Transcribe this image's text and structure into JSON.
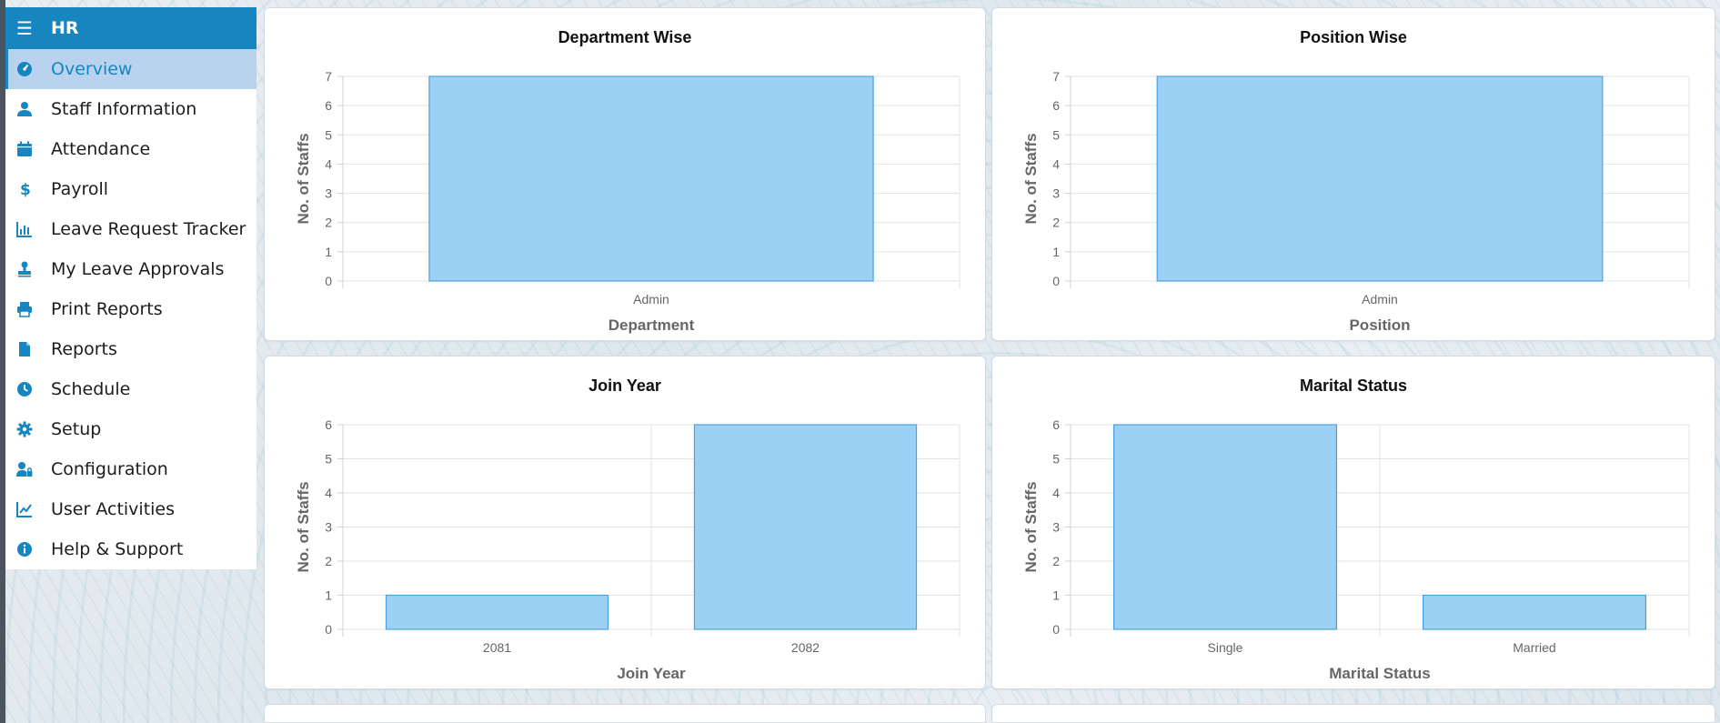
{
  "sidebar": {
    "header": "HR",
    "items": [
      {
        "label": "Overview",
        "icon": "dashboard-icon",
        "active": true
      },
      {
        "label": "Staff Information",
        "icon": "user-icon"
      },
      {
        "label": "Attendance",
        "icon": "calendar-icon"
      },
      {
        "label": "Payroll",
        "icon": "dollar-icon"
      },
      {
        "label": "Leave Request Tracker",
        "icon": "bar-chart-icon"
      },
      {
        "label": "My Leave Approvals",
        "icon": "stamp-icon"
      },
      {
        "label": "Print Reports",
        "icon": "printer-icon"
      },
      {
        "label": "Reports",
        "icon": "file-icon"
      },
      {
        "label": "Schedule",
        "icon": "clock-icon"
      },
      {
        "label": "Setup",
        "icon": "gear-icon"
      },
      {
        "label": "Configuration",
        "icon": "user-lock-icon"
      },
      {
        "label": "User Activities",
        "icon": "line-chart-icon"
      },
      {
        "label": "Help & Support",
        "icon": "info-icon"
      }
    ]
  },
  "colors": {
    "accent": "#1786c0",
    "active_bg": "#b9d3ee",
    "bar_fill": "#9dd0f5",
    "bar_stroke": "#4aa3e0"
  },
  "chart_data": [
    {
      "type": "bar",
      "title": "Department Wise",
      "xlabel": "Department",
      "ylabel": "No. of Staffs",
      "categories": [
        "Admin"
      ],
      "values": [
        7
      ],
      "ylim": [
        0,
        7
      ],
      "yticks": [
        "0",
        "1",
        "2",
        "3",
        "4",
        "5",
        "6",
        "7"
      ]
    },
    {
      "type": "bar",
      "title": "Position Wise",
      "xlabel": "Position",
      "ylabel": "No. of Staffs",
      "categories": [
        "Admin"
      ],
      "values": [
        7
      ],
      "ylim": [
        0,
        7
      ],
      "yticks": [
        "0",
        "1",
        "2",
        "3",
        "4",
        "5",
        "6",
        "7"
      ]
    },
    {
      "type": "bar",
      "title": "Join Year",
      "xlabel": "Join Year",
      "ylabel": "No. of Staffs",
      "categories": [
        "2081",
        "2082"
      ],
      "values": [
        1,
        6
      ],
      "ylim": [
        0,
        6
      ],
      "yticks": [
        "0",
        "1",
        "2",
        "3",
        "4",
        "5",
        "6"
      ]
    },
    {
      "type": "bar",
      "title": "Marital Status",
      "xlabel": "Marital Status",
      "ylabel": "No. of Staffs",
      "categories": [
        "Single",
        "Married"
      ],
      "values": [
        6,
        1
      ],
      "ylim": [
        0,
        6
      ],
      "yticks": [
        "0",
        "1",
        "2",
        "3",
        "4",
        "5",
        "6"
      ]
    }
  ]
}
